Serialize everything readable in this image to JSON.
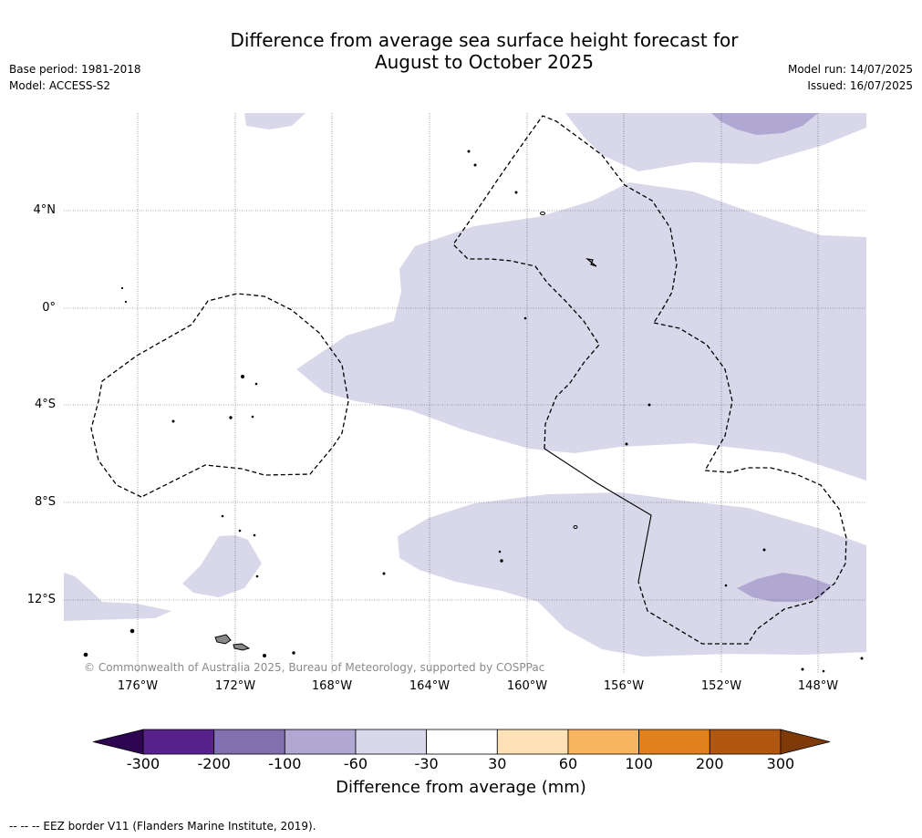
{
  "title_line1": "Difference from average sea surface height forecast for",
  "title_line2": "August to October 2025",
  "meta_left": [
    "Base period: 1981-2018",
    "Model: ACCESS-S2"
  ],
  "meta_right": [
    "Model run: 14/07/2025",
    "Issued: 16/07/2025"
  ],
  "map": {
    "lat_labels": [
      "4°N",
      "0°",
      "4°S",
      "8°S",
      "12°S"
    ],
    "lon_labels": [
      "176°W",
      "172°W",
      "168°W",
      "164°W",
      "160°W",
      "156°W",
      "152°W",
      "148°W"
    ],
    "copyright": "© Commonwealth of Australia 2025, Bureau of Meteorology, supported by COSPPac",
    "anomaly_colors": {
      "-60_to_-30": "#d8d8ea",
      "-100_to_-60": "#b0a8d2"
    }
  },
  "colorbar": {
    "tick_labels": [
      "-300",
      "-200",
      "-100",
      "-60",
      "-30",
      "30",
      "60",
      "100",
      "200",
      "300"
    ],
    "colors": [
      "#57228b",
      "#8071ae",
      "#b0a8d2",
      "#d8d8ea",
      "#ffffff",
      "#fde2b8",
      "#f8b55f",
      "#e0811b",
      "#b1570f"
    ],
    "extend_low_color": "#2d0550",
    "extend_high_color": "#7e3a08",
    "title": "Difference from average (mm)"
  },
  "footer": "--  --  -- EEZ border V11 (Flanders Marine Institute, 2019)."
}
